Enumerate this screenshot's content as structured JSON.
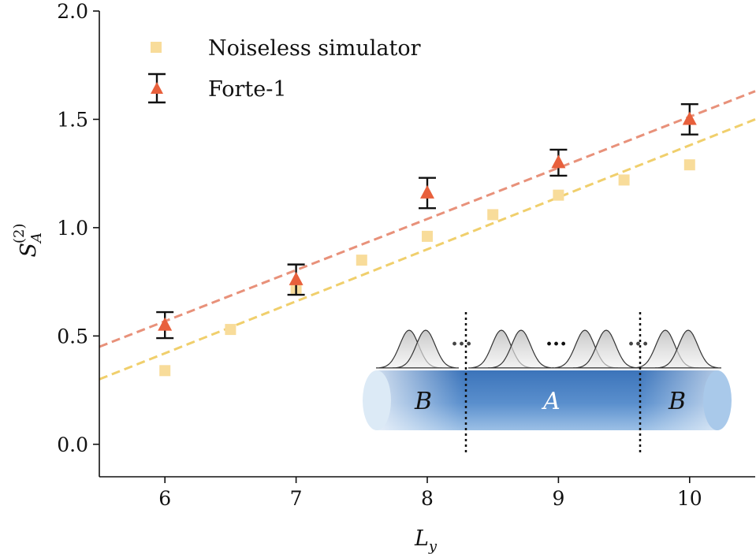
{
  "chart_data": {
    "type": "scatter",
    "xlabel": "L",
    "xlabel_sub": "y",
    "ylabel": "S",
    "ylabel_sup": "(2)",
    "ylabel_sub": "A",
    "xlim": [
      5.5,
      10.5
    ],
    "ylim": [
      -0.15,
      2.0
    ],
    "xticks": [
      6,
      7,
      8,
      9,
      10
    ],
    "yticks": [
      0.0,
      0.5,
      1.0,
      1.5,
      2.0
    ],
    "xtick_labels": [
      "6",
      "7",
      "8",
      "9",
      "10"
    ],
    "ytick_labels": [
      "0.0",
      "0.5",
      "1.0",
      "1.5",
      "2.0"
    ],
    "grid": false,
    "legend_position": "top-left",
    "series": [
      {
        "name": "Noiseless simulator",
        "marker": "square",
        "color": "#f8dc9a",
        "x": [
          6,
          6.5,
          7,
          7.5,
          8,
          8.5,
          9,
          9.5,
          10
        ],
        "y": [
          0.34,
          0.53,
          0.72,
          0.85,
          0.96,
          1.06,
          1.15,
          1.22,
          1.29
        ],
        "fit": {
          "x": [
            5.5,
            10.5
          ],
          "y": [
            0.3,
            1.5
          ],
          "color": "#f0cf6c"
        }
      },
      {
        "name": "Forte-1",
        "marker": "triangle",
        "color": "#e8603c",
        "x": [
          6,
          7,
          8,
          9,
          10
        ],
        "y": [
          0.55,
          0.76,
          1.16,
          1.3,
          1.5
        ],
        "err": [
          0.06,
          0.07,
          0.07,
          0.06,
          0.07
        ],
        "fit": {
          "x": [
            5.5,
            10.5
          ],
          "y": [
            0.45,
            1.63
          ],
          "color": "#e8917a"
        }
      }
    ],
    "inset": {
      "region_labels": [
        "B",
        "A",
        "B"
      ],
      "ellipsis": "...",
      "tube_colors": {
        "light": "#c9dff2",
        "mid": "#7aa9d9",
        "dark": "#3f78bd"
      }
    }
  }
}
